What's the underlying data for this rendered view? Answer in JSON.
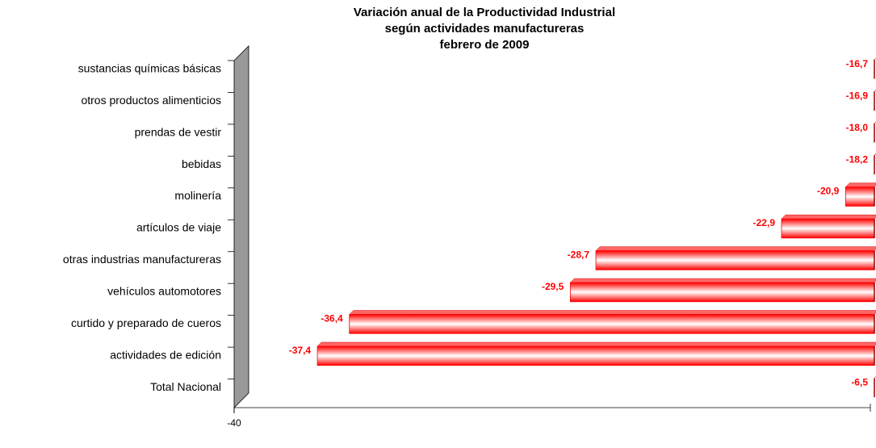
{
  "chart_data": {
    "type": "bar",
    "orientation": "horizontal",
    "title": [
      "Variación anual de la Productividad  Industrial",
      "según actividades manufactureras",
      "febrero de 2009"
    ],
    "categories": [
      "sustancias químicas básicas",
      "otros productos alimenticios",
      "prendas de vestir",
      "bebidas",
      "molinería",
      "artículos de viaje",
      "otras industrias manufactureras",
      "vehículos automotores ",
      "curtido y preparado de cueros",
      "actividades de edición",
      "Total Nacional"
    ],
    "values": [
      -16.7,
      -16.9,
      -18.0,
      -18.2,
      -20.9,
      -22.9,
      -28.7,
      -29.5,
      -36.4,
      -37.4,
      -6.5
    ],
    "value_labels": [
      "-16,7",
      "-16,9",
      "-18,0",
      "-18,2",
      "-20,9",
      "-22,9",
      "-28,7",
      "-29,5",
      "-36,4",
      "-37,4",
      "-6,5"
    ],
    "color": "#ff0000",
    "xlim": [
      -40,
      -20
    ],
    "xticks": [
      -40
    ]
  }
}
